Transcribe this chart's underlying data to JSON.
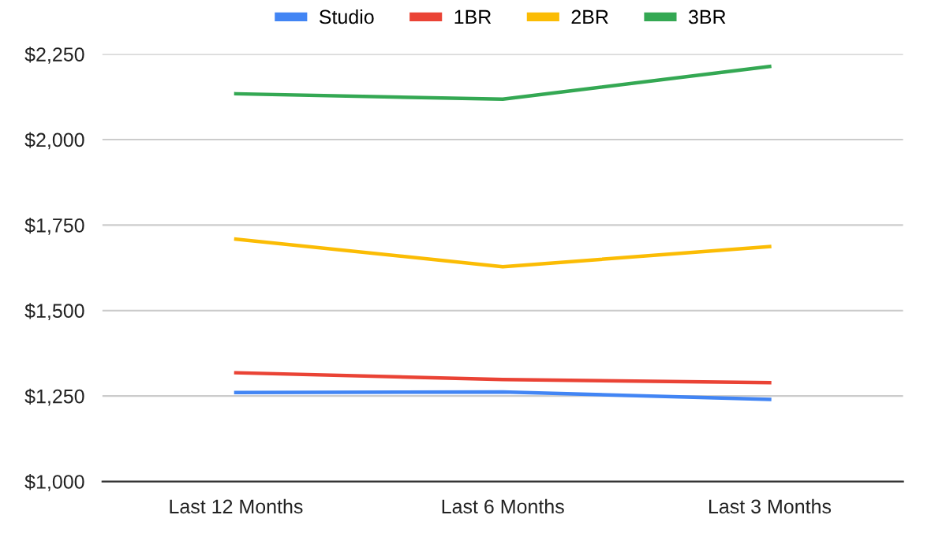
{
  "chart_data": {
    "type": "line",
    "categories": [
      "Last 12 Months",
      "Last 6 Months",
      "Last 3 Months"
    ],
    "series": [
      {
        "name": "Studio",
        "color": "#4285f4",
        "values": [
          1260,
          1262,
          1240
        ]
      },
      {
        "name": "1BR",
        "color": "#ea4335",
        "values": [
          1318,
          1298,
          1289
        ]
      },
      {
        "name": "2BR",
        "color": "#fbbc04",
        "values": [
          1709,
          1628,
          1687
        ]
      },
      {
        "name": "3BR",
        "color": "#34a853",
        "values": [
          2134,
          2118,
          2214
        ]
      }
    ],
    "ylim": [
      1000,
      2250
    ],
    "yticks": [
      {
        "value": 1000,
        "label": "$1,000"
      },
      {
        "value": 1250,
        "label": "$1,250"
      },
      {
        "value": 1500,
        "label": "$1,500"
      },
      {
        "value": 1750,
        "label": "$1,750"
      },
      {
        "value": 2000,
        "label": "$2,000"
      },
      {
        "value": 2250,
        "label": "$2,250"
      }
    ],
    "grid": "y",
    "legend": "top",
    "marker": "none",
    "line_style": "solid"
  }
}
